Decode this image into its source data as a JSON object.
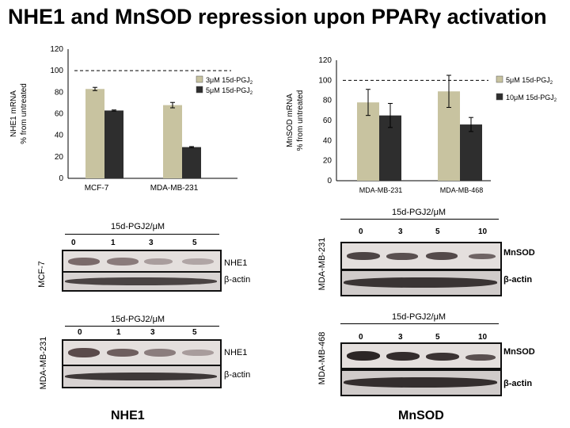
{
  "title": "NHE1 and MnSOD repression upon PPARγ activation",
  "chart_data": [
    {
      "type": "bar",
      "ylabel": "NHE1 mRNA\n% from untreated",
      "categories": [
        "MCF-7",
        "MDA-MB-231"
      ],
      "ylim": [
        0,
        120
      ],
      "yticks": [
        0,
        20,
        40,
        60,
        80,
        100,
        120
      ],
      "reference_line": 100,
      "legend_position": "top-right",
      "series": [
        {
          "name": "3μM 15d-PGJ2",
          "values": [
            83,
            68
          ],
          "errors": [
            1.5,
            2.5
          ],
          "color": "#c8c3a0"
        },
        {
          "name": "5μM 15d-PGJ2",
          "values": [
            63,
            29
          ],
          "errors": [
            0.5,
            0.5
          ],
          "color": "#2e2e2e"
        }
      ]
    },
    {
      "type": "bar",
      "ylabel": "MnSOD mRNA\n% from untreated",
      "categories": [
        "MDA-MB-231",
        "MDA-MB-468"
      ],
      "ylim": [
        0,
        120
      ],
      "yticks": [
        0,
        20,
        40,
        60,
        80,
        100,
        120
      ],
      "reference_line": 100,
      "legend_position": "top-right",
      "series": [
        {
          "name": "5μM 15d-PGJ2",
          "values": [
            78,
            89
          ],
          "errors": [
            13,
            16
          ],
          "color": "#c8c3a0"
        },
        {
          "name": "10μM 15d-PGJ2",
          "values": [
            65,
            56
          ],
          "errors": [
            12,
            7
          ],
          "color": "#2e2e2e"
        }
      ]
    }
  ],
  "blots": {
    "nhe1_mcf7": {
      "cell_line": "MCF-7",
      "treatment": "15d-PGJ2/μM",
      "doses": [
        "0",
        "1",
        "3",
        "5"
      ],
      "rows": [
        "NHE1",
        "β-actin"
      ]
    },
    "nhe1_mda231": {
      "cell_line": "MDA-MB-231",
      "treatment": "15d-PGJ2/μM",
      "doses": [
        "0",
        "1",
        "3",
        "5"
      ],
      "rows": [
        "NHE1",
        "β-actin"
      ]
    },
    "mnsod_mda231": {
      "cell_line": "MDA-MB-231",
      "treatment": "15d-PGJ2/μM",
      "doses": [
        "0",
        "3",
        "5",
        "10"
      ],
      "rows": [
        "MnSOD",
        "β-actin"
      ]
    },
    "mnsod_mda468": {
      "cell_line": "MDA-MB-468",
      "treatment": "15d-PGJ2/μM",
      "doses": [
        "0",
        "3",
        "5",
        "10"
      ],
      "rows": [
        "MnSOD",
        "β-actin"
      ]
    }
  },
  "captions": {
    "left": "NHE1",
    "right": "MnSOD"
  }
}
